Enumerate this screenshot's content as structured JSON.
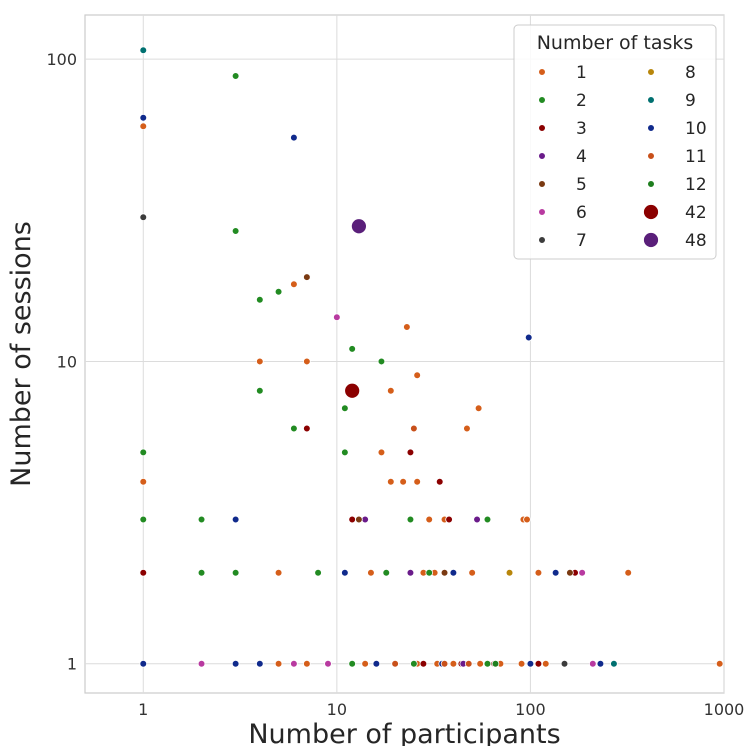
{
  "chart_data": {
    "type": "scatter",
    "xlabel": "Number of participants",
    "ylabel": "Number of sessions",
    "x_scale": "log",
    "y_scale": "log",
    "xlim": [
      0.5,
      1000
    ],
    "ylim": [
      0.8,
      140
    ],
    "x_ticks": [
      1,
      10,
      100,
      1000
    ],
    "x_tick_labels": [
      "1",
      "10",
      "100",
      "1000"
    ],
    "y_ticks": [
      1,
      10,
      100
    ],
    "y_tick_labels": [
      "1",
      "10",
      "100"
    ],
    "grid": true,
    "legend": {
      "title": "Number of tasks",
      "placement": "top-right",
      "columns": 2,
      "entries": [
        {
          "label": "1",
          "color": "#d55e1a"
        },
        {
          "label": "2",
          "color": "#228b22"
        },
        {
          "label": "3",
          "color": "#8b0000"
        },
        {
          "label": "4",
          "color": "#6a1b8a"
        },
        {
          "label": "5",
          "color": "#7a3a12"
        },
        {
          "label": "6",
          "color": "#b83aa0"
        },
        {
          "label": "7",
          "color": "#3c3c3c"
        },
        {
          "label": "8",
          "color": "#b8860b"
        },
        {
          "label": "9",
          "color": "#007070"
        },
        {
          "label": "10",
          "color": "#102a8c"
        },
        {
          "label": "11",
          "color": "#c8501a"
        },
        {
          "label": "12",
          "color": "#1e7e1e"
        },
        {
          "label": "42",
          "color": "#8b0000"
        },
        {
          "label": "48",
          "color": "#5a1f7a"
        }
      ]
    },
    "series": [
      {
        "name": "1",
        "color": "#d55e1a",
        "points": [
          [
            1,
            60
          ],
          [
            1,
            4
          ],
          [
            4,
            10
          ],
          [
            6,
            18
          ],
          [
            7,
            10
          ],
          [
            19,
            8
          ],
          [
            23,
            13
          ],
          [
            26,
            9
          ],
          [
            17,
            5
          ],
          [
            19,
            4
          ],
          [
            22,
            4
          ],
          [
            26,
            4
          ],
          [
            30,
            3
          ],
          [
            36,
            3
          ],
          [
            47,
            6
          ],
          [
            54,
            7
          ],
          [
            92,
            3
          ],
          [
            96,
            3
          ],
          [
            5,
            2
          ],
          [
            15,
            2
          ],
          [
            28,
            2
          ],
          [
            32,
            2
          ],
          [
            50,
            2
          ],
          [
            110,
            2
          ],
          [
            320,
            2
          ],
          [
            3,
            1
          ],
          [
            5,
            1
          ],
          [
            7,
            1
          ],
          [
            9,
            1
          ],
          [
            14,
            1
          ],
          [
            20,
            1
          ],
          [
            26,
            1
          ],
          [
            33,
            1
          ],
          [
            40,
            1
          ],
          [
            55,
            1
          ],
          [
            70,
            1
          ],
          [
            90,
            1
          ],
          [
            120,
            1
          ],
          [
            950,
            1
          ]
        ]
      },
      {
        "name": "2",
        "color": "#228b22",
        "points": [
          [
            3,
            88
          ],
          [
            3,
            27
          ],
          [
            4,
            16
          ],
          [
            5,
            17
          ],
          [
            12,
            11
          ],
          [
            17,
            10
          ],
          [
            4,
            8
          ],
          [
            11,
            7
          ],
          [
            11,
            5
          ],
          [
            6,
            6
          ],
          [
            1,
            5
          ],
          [
            1,
            3
          ],
          [
            2,
            3
          ],
          [
            24,
            3
          ],
          [
            60,
            3
          ],
          [
            2,
            2
          ],
          [
            3,
            2
          ],
          [
            8,
            2
          ],
          [
            18,
            2
          ],
          [
            30,
            2
          ],
          [
            12,
            1
          ],
          [
            25,
            1
          ],
          [
            60,
            1
          ]
        ]
      },
      {
        "name": "3",
        "color": "#8b0000",
        "points": [
          [
            7,
            6
          ],
          [
            24,
            5
          ],
          [
            34,
            4
          ],
          [
            12,
            3
          ],
          [
            38,
            3
          ],
          [
            1,
            2
          ],
          [
            170,
            2
          ],
          [
            28,
            1
          ],
          [
            44,
            1
          ],
          [
            65,
            1
          ],
          [
            110,
            1
          ]
        ]
      },
      {
        "name": "4",
        "color": "#6a1b8a",
        "points": [
          [
            14,
            3
          ],
          [
            53,
            3
          ],
          [
            24,
            2
          ],
          [
            45,
            1
          ]
        ]
      },
      {
        "name": "5",
        "color": "#7a3a12",
        "points": [
          [
            7,
            19
          ],
          [
            13,
            3
          ],
          [
            36,
            2
          ],
          [
            160,
            2
          ]
        ]
      },
      {
        "name": "6",
        "color": "#b83aa0",
        "points": [
          [
            10,
            14
          ],
          [
            185,
            2
          ],
          [
            2,
            1
          ],
          [
            6,
            1
          ],
          [
            9,
            1
          ],
          [
            210,
            1
          ]
        ]
      },
      {
        "name": "7",
        "color": "#3c3c3c",
        "points": [
          [
            1,
            30
          ],
          [
            150,
            1
          ]
        ]
      },
      {
        "name": "8",
        "color": "#b8860b",
        "points": [
          [
            78,
            2
          ]
        ]
      },
      {
        "name": "9",
        "color": "#007070",
        "points": [
          [
            1,
            107
          ],
          [
            270,
            1
          ]
        ]
      },
      {
        "name": "10",
        "color": "#102a8c",
        "points": [
          [
            1,
            64
          ],
          [
            6,
            55
          ],
          [
            98,
            12
          ],
          [
            3,
            3
          ],
          [
            11,
            2
          ],
          [
            40,
            2
          ],
          [
            135,
            2
          ],
          [
            1,
            1
          ],
          [
            3,
            1
          ],
          [
            4,
            1
          ],
          [
            16,
            1
          ],
          [
            35,
            1
          ],
          [
            100,
            1
          ],
          [
            230,
            1
          ]
        ]
      },
      {
        "name": "11",
        "color": "#c8501a",
        "points": [
          [
            25,
            6
          ],
          [
            20,
            1
          ],
          [
            36,
            1
          ],
          [
            48,
            1
          ]
        ]
      },
      {
        "name": "12",
        "color": "#1e7e1e",
        "points": [
          [
            12,
            8
          ],
          [
            66,
            1
          ]
        ]
      },
      {
        "name": "42",
        "color": "#8b0000",
        "points": [
          [
            12,
            8
          ]
        ]
      },
      {
        "name": "48",
        "color": "#5a1f7a",
        "points": [
          [
            13,
            28
          ]
        ]
      }
    ]
  }
}
